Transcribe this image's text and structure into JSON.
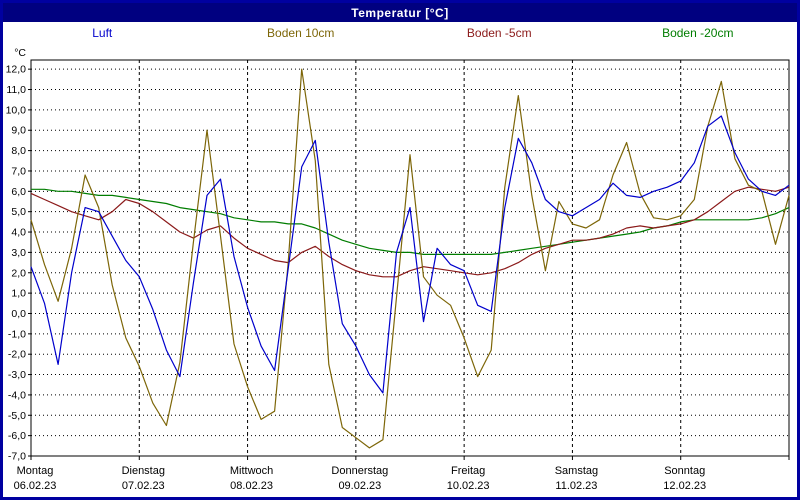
{
  "title": "Temperatur [°C]",
  "colors": {
    "titlebar": "#000080",
    "window_border": "#0000a0",
    "plot_border": "#000000",
    "grid": "#000000",
    "background": "#ffffff"
  },
  "chart_data": {
    "type": "line",
    "title": "Temperatur [°C]",
    "y_unit": "°C",
    "ylabel": "",
    "xlabel": "",
    "ylim": [
      -7,
      12
    ],
    "y_tick_step": 1,
    "y_tick_labels": [
      "12,0",
      "11,0",
      "10,0",
      "9,0",
      "8,0",
      "7,0",
      "6,0",
      "5,0",
      "4,0",
      "3,0",
      "2,0",
      "1,0",
      "0,0",
      "-1,0",
      "-2,0",
      "-3,0",
      "-4,0",
      "-5,0",
      "-6,0",
      "-7,0"
    ],
    "grid": {
      "horizontal": "dotted every 1 degC",
      "vertical": "dashed every day",
      "on": true
    },
    "legend_position": "top",
    "x_axis": {
      "span_days": 7,
      "sample_step_hours": 3,
      "day_labels": [
        {
          "weekday": "Montag",
          "date": "06.02.23"
        },
        {
          "weekday": "Dienstag",
          "date": "07.02.23"
        },
        {
          "weekday": "Mittwoch",
          "date": "08.02.23"
        },
        {
          "weekday": "Donnerstag",
          "date": "09.02.23"
        },
        {
          "weekday": "Freitag",
          "date": "10.02.23"
        },
        {
          "weekday": "Samstag",
          "date": "11.02.23"
        },
        {
          "weekday": "Sonntag",
          "date": "12.02.23"
        }
      ]
    },
    "series": [
      {
        "name": "Luft",
        "color": "#0000cc",
        "values": [
          2.3,
          0.5,
          -2.5,
          2.0,
          5.2,
          5.0,
          3.8,
          2.6,
          1.8,
          0.2,
          -1.8,
          -3.1,
          1.5,
          5.8,
          6.6,
          2.8,
          0.3,
          -1.6,
          -2.8,
          2.2,
          7.2,
          8.5,
          3.5,
          -0.5,
          -1.6,
          -3.0,
          -3.9,
          3.0,
          5.2,
          -0.4,
          3.2,
          2.4,
          2.1,
          0.4,
          0.1,
          5.2,
          8.6,
          7.4,
          5.6,
          5.0,
          4.8,
          5.2,
          5.6,
          6.4,
          5.8,
          5.7,
          6.0,
          6.2,
          6.5,
          7.4,
          9.2,
          9.7,
          7.9,
          6.6,
          6.0,
          5.8,
          6.3
        ]
      },
      {
        "name": "Boden 10cm",
        "color": "#7d6608",
        "values": [
          4.6,
          2.4,
          0.6,
          3.2,
          6.8,
          5.2,
          1.4,
          -1.2,
          -2.6,
          -4.4,
          -5.5,
          -2.4,
          3.5,
          9.0,
          3.8,
          -1.5,
          -3.6,
          -5.2,
          -4.8,
          2.5,
          12.0,
          7.5,
          -2.5,
          -5.6,
          -6.1,
          -6.6,
          -6.2,
          0.8,
          7.8,
          1.8,
          0.9,
          0.4,
          -1.2,
          -3.1,
          -1.8,
          6.2,
          10.7,
          5.8,
          2.1,
          5.5,
          4.4,
          4.2,
          4.6,
          6.8,
          8.4,
          5.9,
          4.7,
          4.6,
          4.8,
          5.6,
          9.2,
          11.4,
          7.6,
          6.3,
          6.0,
          3.4,
          5.8
        ]
      },
      {
        "name": "Boden -5cm",
        "color": "#8b1a1a",
        "values": [
          5.9,
          5.6,
          5.3,
          5.0,
          4.8,
          4.6,
          5.0,
          5.6,
          5.4,
          5.0,
          4.5,
          4.0,
          3.7,
          4.1,
          4.3,
          3.7,
          3.2,
          2.9,
          2.6,
          2.5,
          3.0,
          3.3,
          2.8,
          2.4,
          2.1,
          1.9,
          1.8,
          1.8,
          2.1,
          2.3,
          2.2,
          2.1,
          2.0,
          1.9,
          2.0,
          2.2,
          2.5,
          2.9,
          3.2,
          3.4,
          3.6,
          3.6,
          3.7,
          3.9,
          4.2,
          4.3,
          4.2,
          4.3,
          4.4,
          4.6,
          5.0,
          5.5,
          6.0,
          6.2,
          6.1,
          6.0,
          6.2
        ]
      },
      {
        "name": "Boden -20cm",
        "color": "#007d00",
        "values": [
          6.1,
          6.1,
          6.0,
          6.0,
          5.9,
          5.8,
          5.8,
          5.7,
          5.6,
          5.5,
          5.4,
          5.2,
          5.1,
          5.0,
          4.9,
          4.7,
          4.6,
          4.5,
          4.5,
          4.4,
          4.4,
          4.2,
          3.9,
          3.6,
          3.4,
          3.2,
          3.1,
          3.0,
          3.0,
          2.9,
          2.9,
          2.9,
          2.9,
          2.9,
          2.9,
          3.0,
          3.1,
          3.2,
          3.3,
          3.4,
          3.5,
          3.6,
          3.7,
          3.8,
          3.9,
          4.0,
          4.2,
          4.3,
          4.5,
          4.6,
          4.6,
          4.6,
          4.6,
          4.6,
          4.7,
          4.9,
          5.2
        ]
      }
    ]
  }
}
